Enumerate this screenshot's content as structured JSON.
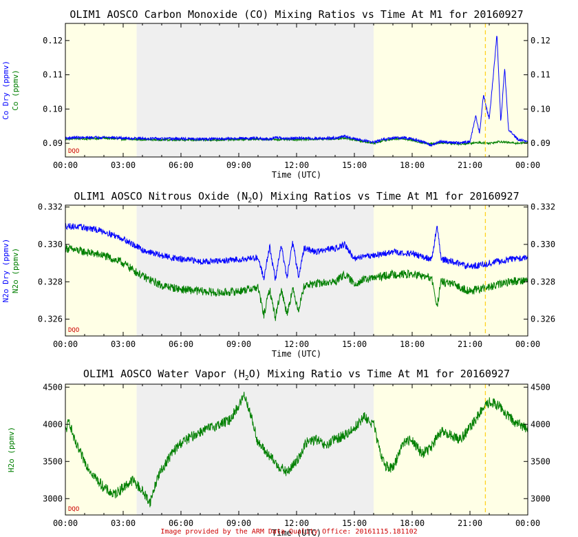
{
  "footer": "Image provided by the ARM Data Quality Office: 20161115.181102",
  "colors": {
    "night": "#ffffe6",
    "day": "#efefef",
    "blue": "#0000ff",
    "green": "#007f00",
    "marker": "#ffd21f",
    "dqo": "#cc0000"
  },
  "chart_data": [
    {
      "type": "line",
      "title": "OLIM1 AOSCO Carbon Monoxide (CO) Mixing Ratios vs Time At M1 for 20160927",
      "xlabel": "Time (UTC)",
      "ylabel_primary": "Co Dry (ppmv)",
      "ylabel_secondary": "Co (ppmv)",
      "dqo_label": "DQO",
      "xlim": [
        0,
        24
      ],
      "ylim": [
        0.086,
        0.125
      ],
      "x_ticks": [
        "00:00",
        "03:00",
        "06:00",
        "09:00",
        "12:00",
        "15:00",
        "18:00",
        "21:00",
        "00:00"
      ],
      "y_ticks": [
        0.09,
        0.1,
        0.11,
        0.12
      ],
      "y_tick_labels": [
        "0.09",
        "0.10",
        "0.11",
        "0.12"
      ],
      "shading": [
        {
          "kind": "night",
          "from": 0,
          "to": 3.7
        },
        {
          "kind": "day",
          "from": 3.7,
          "to": 16.0
        },
        {
          "kind": "night",
          "from": 16.0,
          "to": 24
        }
      ],
      "marker_x": 21.8,
      "series": [
        {
          "name": "Co",
          "color": "green",
          "noise": 0.0003,
          "x": [
            0,
            0.5,
            1,
            1.5,
            2,
            3,
            4,
            5,
            6,
            7,
            8,
            9,
            10,
            11,
            12,
            13,
            14,
            14.5,
            15,
            15.5,
            16,
            16.5,
            17,
            17.5,
            18,
            18.5,
            19,
            19.5,
            20,
            20.5,
            21,
            21.5,
            22,
            22.5,
            23,
            23.5,
            24
          ],
          "y": [
            0.0912,
            0.0914,
            0.0913,
            0.0914,
            0.0915,
            0.0912,
            0.0911,
            0.091,
            0.091,
            0.0909,
            0.091,
            0.0911,
            0.0912,
            0.0911,
            0.0911,
            0.0912,
            0.0913,
            0.0915,
            0.091,
            0.0905,
            0.09,
            0.0908,
            0.0912,
            0.0914,
            0.0909,
            0.0902,
            0.0898,
            0.0902,
            0.09,
            0.0898,
            0.09,
            0.0902,
            0.09,
            0.0905,
            0.0902,
            0.09,
            0.0903
          ]
        },
        {
          "name": "Co Dry",
          "color": "blue",
          "noise": 0.0004,
          "x": [
            0,
            0.5,
            1,
            1.5,
            2,
            3,
            4,
            5,
            6,
            7,
            8,
            9,
            10,
            10.5,
            11,
            11.5,
            12,
            13,
            14,
            14.5,
            15,
            15.5,
            16,
            16.5,
            17,
            17.5,
            18,
            18.5,
            19,
            19.5,
            20,
            20.5,
            21,
            21.3,
            21.5,
            21.7,
            22,
            22.2,
            22.4,
            22.6,
            22.8,
            23,
            23.5,
            24
          ],
          "y": [
            0.0915,
            0.0917,
            0.0916,
            0.0917,
            0.0918,
            0.0915,
            0.0914,
            0.0913,
            0.0913,
            0.0912,
            0.0913,
            0.0914,
            0.0915,
            0.0912,
            0.0916,
            0.0913,
            0.0915,
            0.0914,
            0.0916,
            0.092,
            0.0913,
            0.0908,
            0.0903,
            0.0911,
            0.0915,
            0.0917,
            0.0912,
            0.0905,
            0.0895,
            0.0905,
            0.0903,
            0.0901,
            0.0905,
            0.098,
            0.093,
            0.104,
            0.097,
            0.109,
            0.122,
            0.096,
            0.112,
            0.094,
            0.091,
            0.0905
          ]
        }
      ]
    },
    {
      "type": "line",
      "title": "OLIM1 AOSCO Nitrous Oxide (N2O) Mixing Ratios vs Time At M1 for 20160927",
      "title_parts": [
        "OLIM1 AOSCO Nitrous Oxide (N",
        "2",
        "O) Mixing Ratios vs Time At M1 for 20160927"
      ],
      "xlabel": "Time (UTC)",
      "ylabel_primary": "N2o Dry (ppmv)",
      "ylabel_secondary": "N2o (ppmv)",
      "dqo_label": "DQO",
      "xlim": [
        0,
        24
      ],
      "ylim": [
        0.3251,
        0.3321
      ],
      "x_ticks": [
        "00:00",
        "03:00",
        "06:00",
        "09:00",
        "12:00",
        "15:00",
        "18:00",
        "21:00",
        "00:00"
      ],
      "y_ticks": [
        0.326,
        0.328,
        0.33,
        0.332
      ],
      "y_tick_labels": [
        "0.326",
        "0.328",
        "0.330",
        "0.332"
      ],
      "shading": [
        {
          "kind": "night",
          "from": 0,
          "to": 3.7
        },
        {
          "kind": "day",
          "from": 3.7,
          "to": 16.0
        },
        {
          "kind": "night",
          "from": 16.0,
          "to": 24
        }
      ],
      "marker_x": 21.8,
      "series": [
        {
          "name": "N2o",
          "color": "green",
          "noise": 0.00022,
          "x": [
            0,
            1,
            2,
            3,
            4,
            5,
            6,
            7,
            8,
            9,
            10,
            10.3,
            10.6,
            10.9,
            11.2,
            11.5,
            11.8,
            12.1,
            12.4,
            13,
            14,
            14.5,
            15,
            15.5,
            16,
            17,
            18,
            19,
            19.3,
            19.5,
            20,
            21,
            22,
            23,
            24
          ],
          "y": [
            0.3298,
            0.3296,
            0.3294,
            0.329,
            0.3283,
            0.3278,
            0.3276,
            0.3275,
            0.3274,
            0.3275,
            0.3277,
            0.3262,
            0.3276,
            0.3261,
            0.3276,
            0.3263,
            0.3276,
            0.3265,
            0.3278,
            0.3279,
            0.328,
            0.3284,
            0.3279,
            0.3281,
            0.3282,
            0.3284,
            0.3284,
            0.3282,
            0.3267,
            0.328,
            0.3279,
            0.3275,
            0.3277,
            0.328,
            0.3281
          ]
        },
        {
          "name": "N2o Dry",
          "color": "blue",
          "noise": 0.00017,
          "x": [
            0,
            1,
            2,
            3,
            4,
            5,
            6,
            7,
            8,
            9,
            10,
            10.3,
            10.6,
            10.9,
            11.2,
            11.5,
            11.8,
            12.1,
            12.4,
            13,
            14,
            14.5,
            15,
            15.5,
            16,
            17,
            18,
            19,
            19.3,
            19.5,
            20,
            21,
            22,
            23,
            24
          ],
          "y": [
            0.331,
            0.3309,
            0.3307,
            0.3303,
            0.3297,
            0.3294,
            0.3292,
            0.3291,
            0.3291,
            0.3292,
            0.3293,
            0.3282,
            0.3299,
            0.3281,
            0.33,
            0.3282,
            0.3301,
            0.3283,
            0.3298,
            0.3296,
            0.3298,
            0.33,
            0.3292,
            0.3294,
            0.3294,
            0.3296,
            0.3295,
            0.3292,
            0.331,
            0.3292,
            0.3291,
            0.3288,
            0.329,
            0.3292,
            0.3293
          ]
        }
      ]
    },
    {
      "type": "line",
      "title": "OLIM1 AOSCO Water Vapor (H2O) Mixing Ratio vs Time At M1 for 20160927",
      "title_parts": [
        "OLIM1 AOSCO Water Vapor (H",
        "2",
        "O) Mixing Ratio vs Time At M1 for 20160927"
      ],
      "xlabel": "Time (UTC)",
      "ylabel_primary": "H2o (ppmv)",
      "dqo_label": "DQO",
      "xlim": [
        0,
        24
      ],
      "ylim": [
        2780,
        4540
      ],
      "x_ticks": [
        "00:00",
        "03:00",
        "06:00",
        "09:00",
        "12:00",
        "15:00",
        "18:00",
        "21:00",
        "00:00"
      ],
      "y_ticks": [
        3000,
        3500,
        4000,
        4500
      ],
      "y_tick_labels": [
        "3000",
        "3500",
        "4000",
        "4500"
      ],
      "shading": [
        {
          "kind": "night",
          "from": 0,
          "to": 3.7
        },
        {
          "kind": "day",
          "from": 3.7,
          "to": 16.0
        },
        {
          "kind": "night",
          "from": 16.0,
          "to": 24
        }
      ],
      "marker_x": 21.8,
      "series": [
        {
          "name": "H2o",
          "color": "green",
          "noise": 70,
          "x": [
            0,
            0.2,
            0.5,
            1,
            1.5,
            2,
            2.5,
            3,
            3.5,
            4,
            4.4,
            4.8,
            5.5,
            6,
            7,
            8,
            8.5,
            9,
            9.3,
            9.6,
            10,
            10.5,
            11,
            11.5,
            12,
            12.5,
            13,
            13.5,
            14,
            14.5,
            15,
            15.5,
            16,
            16.3,
            16.6,
            17,
            17.5,
            18,
            18.5,
            19,
            19.5,
            20,
            20.5,
            21,
            21.5,
            22,
            22.5,
            23,
            23.5,
            24
          ],
          "y": [
            3900,
            4050,
            3750,
            3500,
            3300,
            3150,
            3050,
            3150,
            3250,
            3100,
            2950,
            3300,
            3600,
            3750,
            3900,
            4000,
            4050,
            4250,
            4400,
            4150,
            3750,
            3600,
            3450,
            3350,
            3500,
            3750,
            3800,
            3700,
            3800,
            3850,
            3950,
            4100,
            4000,
            3650,
            3450,
            3400,
            3750,
            3800,
            3600,
            3700,
            3900,
            3850,
            3800,
            3950,
            4150,
            4300,
            4250,
            4100,
            4000,
            3950
          ]
        }
      ]
    }
  ]
}
